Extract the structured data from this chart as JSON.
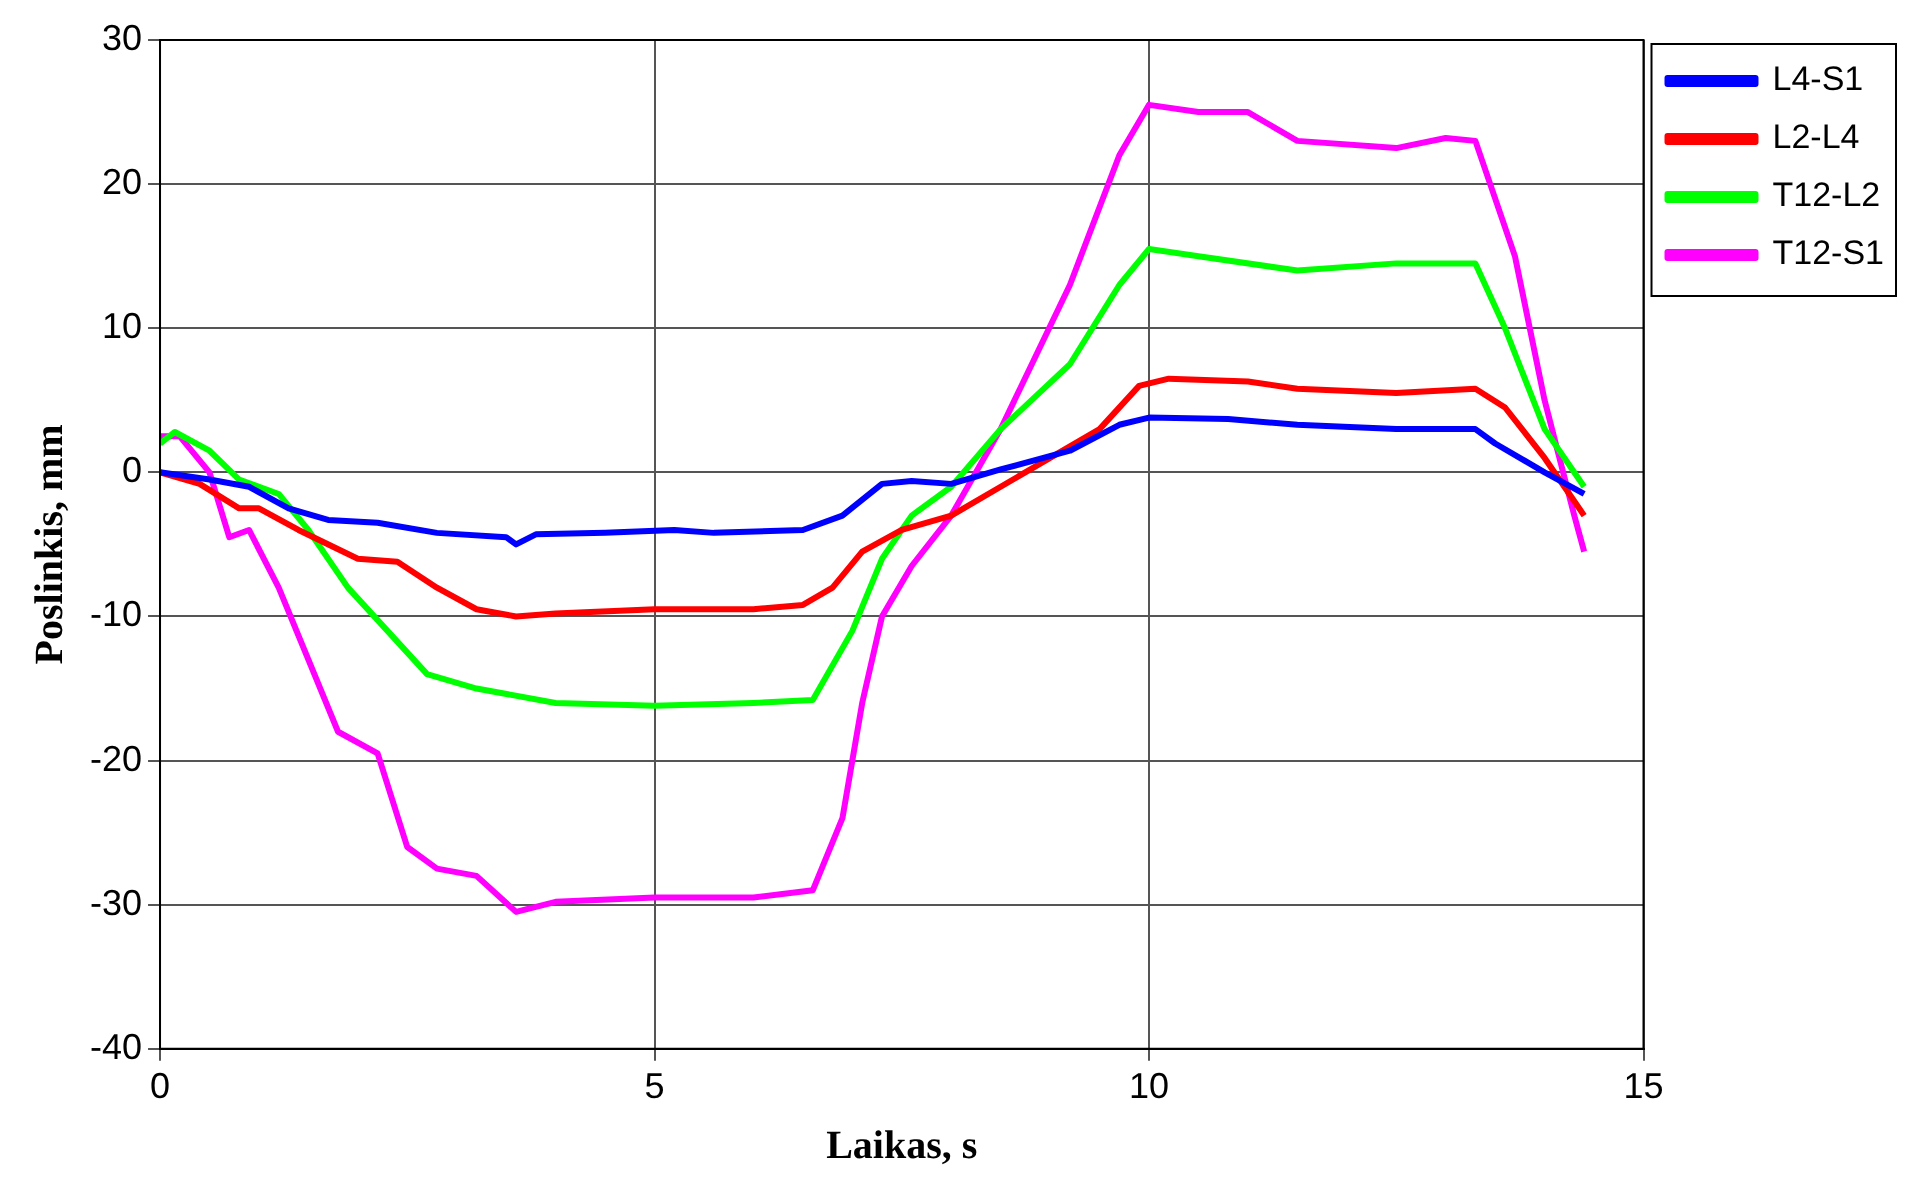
{
  "chart_data": {
    "type": "line",
    "xlabel": "Laikas, s",
    "ylabel": "Poslinkis, mm",
    "xlim": [
      0,
      15
    ],
    "xticks": [
      0,
      5,
      10,
      15
    ],
    "ylim": [
      -40,
      30
    ],
    "yticks": [
      -40,
      -30,
      -20,
      -10,
      0,
      10,
      20,
      30
    ],
    "grid": true,
    "legend": "top right",
    "marker": "none",
    "line_style": "solid",
    "series": [
      {
        "name": "L4-S1",
        "color": "#0000ff",
        "x": [
          0,
          0.5,
          0.9,
          1.3,
          1.7,
          2.2,
          2.8,
          3.5,
          3.6,
          3.8,
          4.5,
          5.2,
          5.6,
          6.5,
          6.9,
          7.3,
          7.6,
          8,
          8.5,
          9.2,
          9.7,
          10,
          10.8,
          11.5,
          12.5,
          13.3,
          13.5,
          14,
          14.4
        ],
        "values": [
          0,
          -0.5,
          -1,
          -2.5,
          -3.3,
          -3.5,
          -4.2,
          -4.5,
          -5,
          -4.3,
          -4.2,
          -4,
          -4.2,
          -4,
          -3,
          -0.8,
          -0.6,
          -0.8,
          0.2,
          1.5,
          3.3,
          3.8,
          3.7,
          3.3,
          3,
          3,
          2,
          0,
          -1.5
        ]
      },
      {
        "name": "L2-L4",
        "color": "#ff0000",
        "x": [
          0,
          0.4,
          0.8,
          1,
          1.4,
          2,
          2.4,
          2.8,
          3.2,
          3.6,
          4,
          5,
          6,
          6.5,
          6.8,
          7.1,
          7.5,
          8,
          8.5,
          9,
          9.5,
          9.9,
          10.2,
          11,
          11.5,
          12.5,
          13.3,
          13.6,
          14,
          14.4
        ],
        "values": [
          0,
          -0.8,
          -2.5,
          -2.5,
          -4,
          -6,
          -6.2,
          -8,
          -9.5,
          -10,
          -9.8,
          -9.5,
          -9.5,
          -9.2,
          -8,
          -5.5,
          -4,
          -3,
          -1,
          1,
          3,
          6,
          6.5,
          6.3,
          5.8,
          5.5,
          5.8,
          4.5,
          1,
          -3
        ]
      },
      {
        "name": "T12-L2",
        "color": "#00ff00",
        "x": [
          0,
          0.15,
          0.5,
          0.8,
          1.2,
          1.5,
          1.9,
          2.3,
          2.7,
          3.2,
          4,
          5,
          6,
          6.6,
          7,
          7.3,
          7.6,
          8,
          8.5,
          9.2,
          9.7,
          10,
          10.5,
          11.5,
          12.5,
          13.3,
          13.6,
          14,
          14.4
        ],
        "values": [
          2,
          2.8,
          1.5,
          -0.5,
          -1.5,
          -4,
          -8,
          -11,
          -14,
          -15,
          -16,
          -16.2,
          -16,
          -15.8,
          -11,
          -6,
          -3,
          -1,
          3,
          7.5,
          13,
          15.5,
          15,
          14,
          14.5,
          14.5,
          10,
          3,
          -1
        ]
      },
      {
        "name": "T12-S1",
        "color": "#ff00ff",
        "x": [
          0,
          0.2,
          0.5,
          0.7,
          0.9,
          1.2,
          1.5,
          1.8,
          2.2,
          2.5,
          2.8,
          3.2,
          3.6,
          4,
          5,
          6,
          6.6,
          6.9,
          7.1,
          7.3,
          7.6,
          8,
          8.5,
          9.2,
          9.7,
          10,
          10.5,
          11,
          11.5,
          12.5,
          13,
          13.3,
          13.7,
          14,
          14.3,
          14.4
        ],
        "values": [
          2.5,
          2.5,
          0,
          -4.5,
          -4,
          -8,
          -13,
          -18,
          -19.5,
          -26,
          -27.5,
          -28,
          -30.5,
          -29.8,
          -29.5,
          -29.5,
          -29,
          -24,
          -16,
          -10,
          -6.5,
          -3,
          3,
          13,
          22,
          25.5,
          25,
          25,
          23,
          22.5,
          23.2,
          23,
          15,
          5,
          -3,
          -5.5
        ]
      }
    ]
  }
}
